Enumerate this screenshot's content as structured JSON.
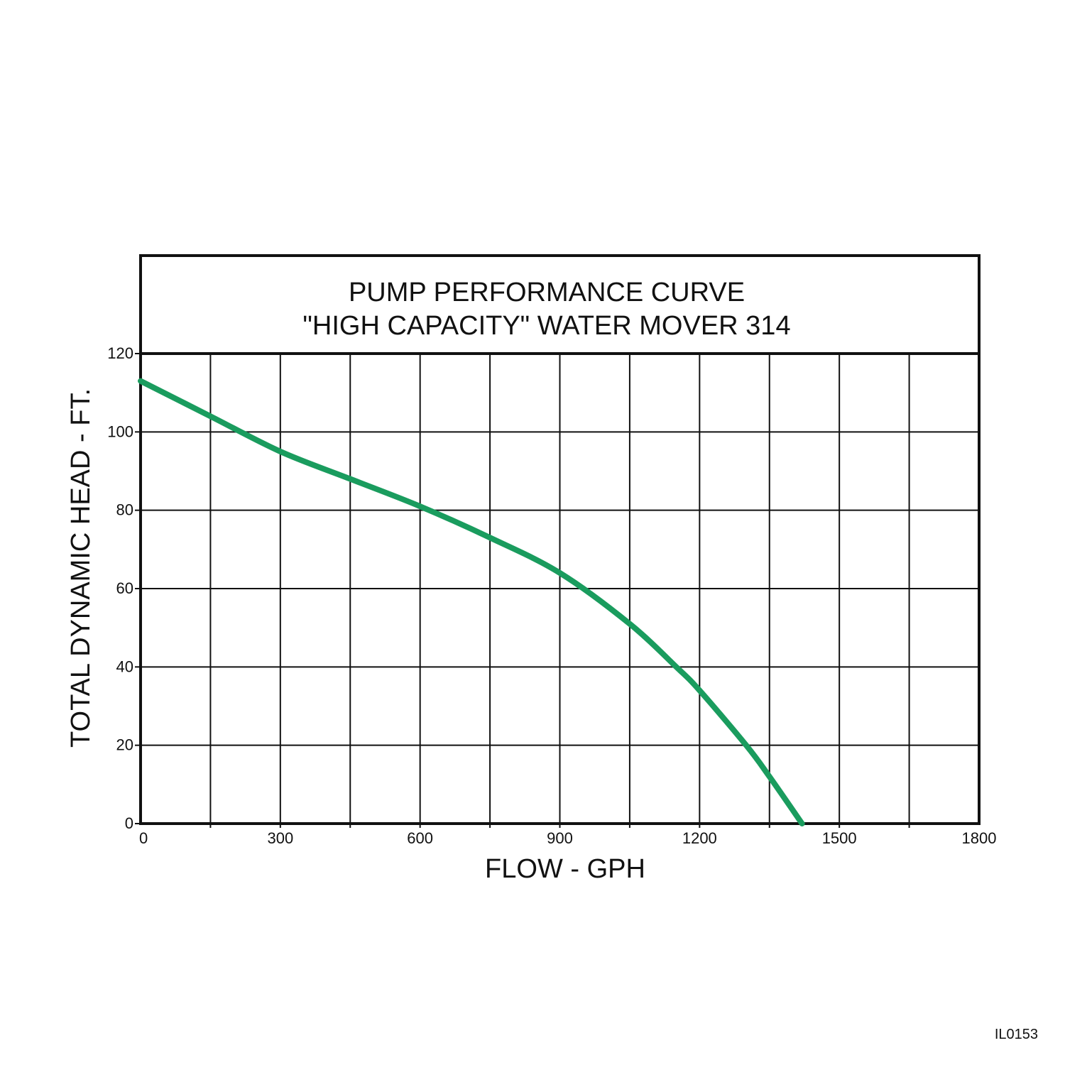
{
  "chart_data": {
    "type": "line",
    "title": "PUMP PERFORMANCE CURVE",
    "subtitle": "\"HIGH CAPACITY\" WATER MOVER 314",
    "xlabel": "FLOW - GPH",
    "ylabel": "TOTAL DYNAMIC HEAD - FT.",
    "xlim": [
      0,
      1800
    ],
    "ylim": [
      0,
      120
    ],
    "x_tick_labels": [
      0,
      300,
      600,
      900,
      1200,
      1500,
      1800
    ],
    "x_minor_step": 150,
    "y_tick_labels": [
      0,
      20,
      40,
      60,
      80,
      100,
      120
    ],
    "grid": true,
    "series": [
      {
        "color": "#1a9c5e",
        "points": [
          [
            0,
            113
          ],
          [
            150,
            104
          ],
          [
            300,
            95
          ],
          [
            450,
            88
          ],
          [
            600,
            81
          ],
          [
            750,
            73
          ],
          [
            900,
            64
          ],
          [
            1050,
            51
          ],
          [
            1150,
            40
          ],
          [
            1200,
            34
          ],
          [
            1300,
            20
          ],
          [
            1350,
            12
          ],
          [
            1420,
            0
          ]
        ]
      }
    ]
  },
  "figure_code": "IL0153"
}
